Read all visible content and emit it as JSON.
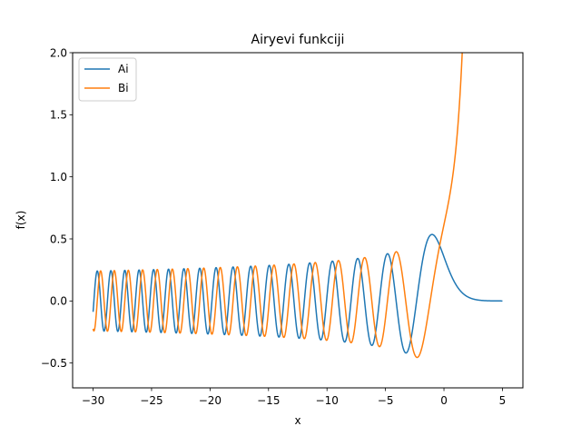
{
  "chart_data": {
    "type": "line",
    "title": "Airyevi funkciji",
    "xlabel": "x",
    "ylabel": "f(x)",
    "xlim": [
      -31.75,
      6.75
    ],
    "ylim": [
      -0.7,
      2.0
    ],
    "grid": false,
    "legend_placement": "top-left",
    "xticks": [
      -30,
      -25,
      -20,
      -15,
      -10,
      -5,
      0,
      5
    ],
    "xtick_labels": [
      "−30",
      "−25",
      "−20",
      "−15",
      "−10",
      "−5",
      "0",
      "5"
    ],
    "yticks": [
      -0.5,
      0.0,
      0.5,
      1.0,
      1.5,
      2.0
    ],
    "ytick_labels": [
      "−0.5",
      "0.0",
      "0.5",
      "1.0",
      "1.5",
      "2.0"
    ],
    "x_range": [
      -30,
      5
    ],
    "series": [
      {
        "name": "Ai",
        "color": "#1f77b4",
        "function": "airy_ai"
      },
      {
        "name": "Bi",
        "color": "#ff7f0e",
        "function": "airy_bi"
      }
    ]
  }
}
